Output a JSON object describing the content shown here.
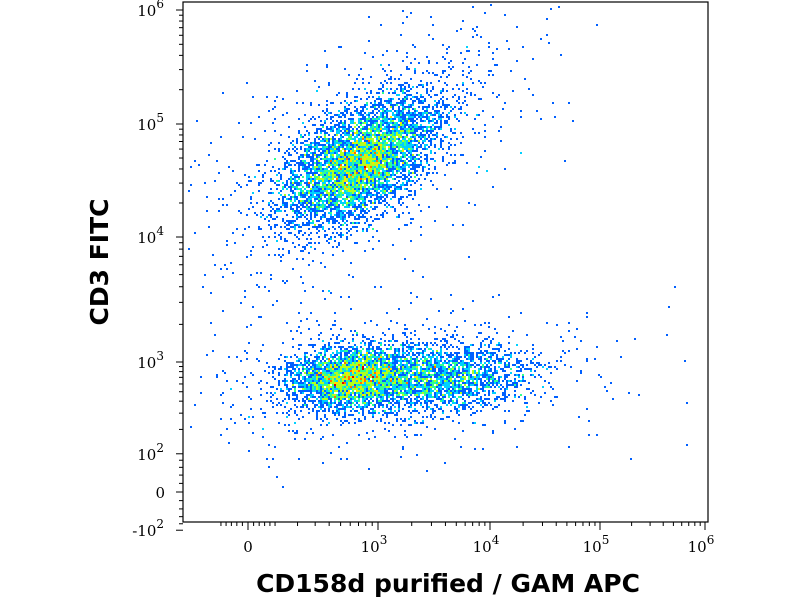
{
  "chart_data": {
    "type": "scatter",
    "subtype": "flow-cytometry density dot plot",
    "xlabel": "CD158d purified / GAM APC",
    "ylabel": "CD3 FITC",
    "x_scale": "biexponential",
    "y_scale": "biexponential",
    "xlim": [
      -100,
      1000000
    ],
    "ylim": [
      -100,
      1000000
    ],
    "x_ticks": [
      {
        "value": 0,
        "base": "0",
        "exp": ""
      },
      {
        "value": 1000,
        "base": "10",
        "exp": "3"
      },
      {
        "value": 10000,
        "base": "10",
        "exp": "4"
      },
      {
        "value": 100000,
        "base": "10",
        "exp": "5"
      },
      {
        "value": 1000000,
        "base": "10",
        "exp": "6"
      }
    ],
    "y_ticks": [
      {
        "value": -100,
        "base": "-10",
        "exp": "2"
      },
      {
        "value": 0,
        "base": "0",
        "exp": ""
      },
      {
        "value": 100,
        "base": "10",
        "exp": "2"
      },
      {
        "value": 1000,
        "base": "10",
        "exp": "3"
      },
      {
        "value": 10000,
        "base": "10",
        "exp": "4"
      },
      {
        "value": 100000,
        "base": "10",
        "exp": "5"
      },
      {
        "value": 1000000,
        "base": "10",
        "exp": "6"
      }
    ],
    "populations": [
      {
        "x_center": 720,
        "y_center": 44000,
        "events": 6500
      },
      {
        "x_center": 600,
        "y_center": 700,
        "events": 3500
      },
      {
        "x_center": 3500,
        "y_center": 680,
        "events": 2500
      }
    ],
    "colormap": [
      "#0000c8",
      "#0060ff",
      "#00d0ff",
      "#30ff90",
      "#b0ff20",
      "#ffe000",
      "#ff7000",
      "#e00000"
    ],
    "grid": false,
    "legend": "none"
  }
}
